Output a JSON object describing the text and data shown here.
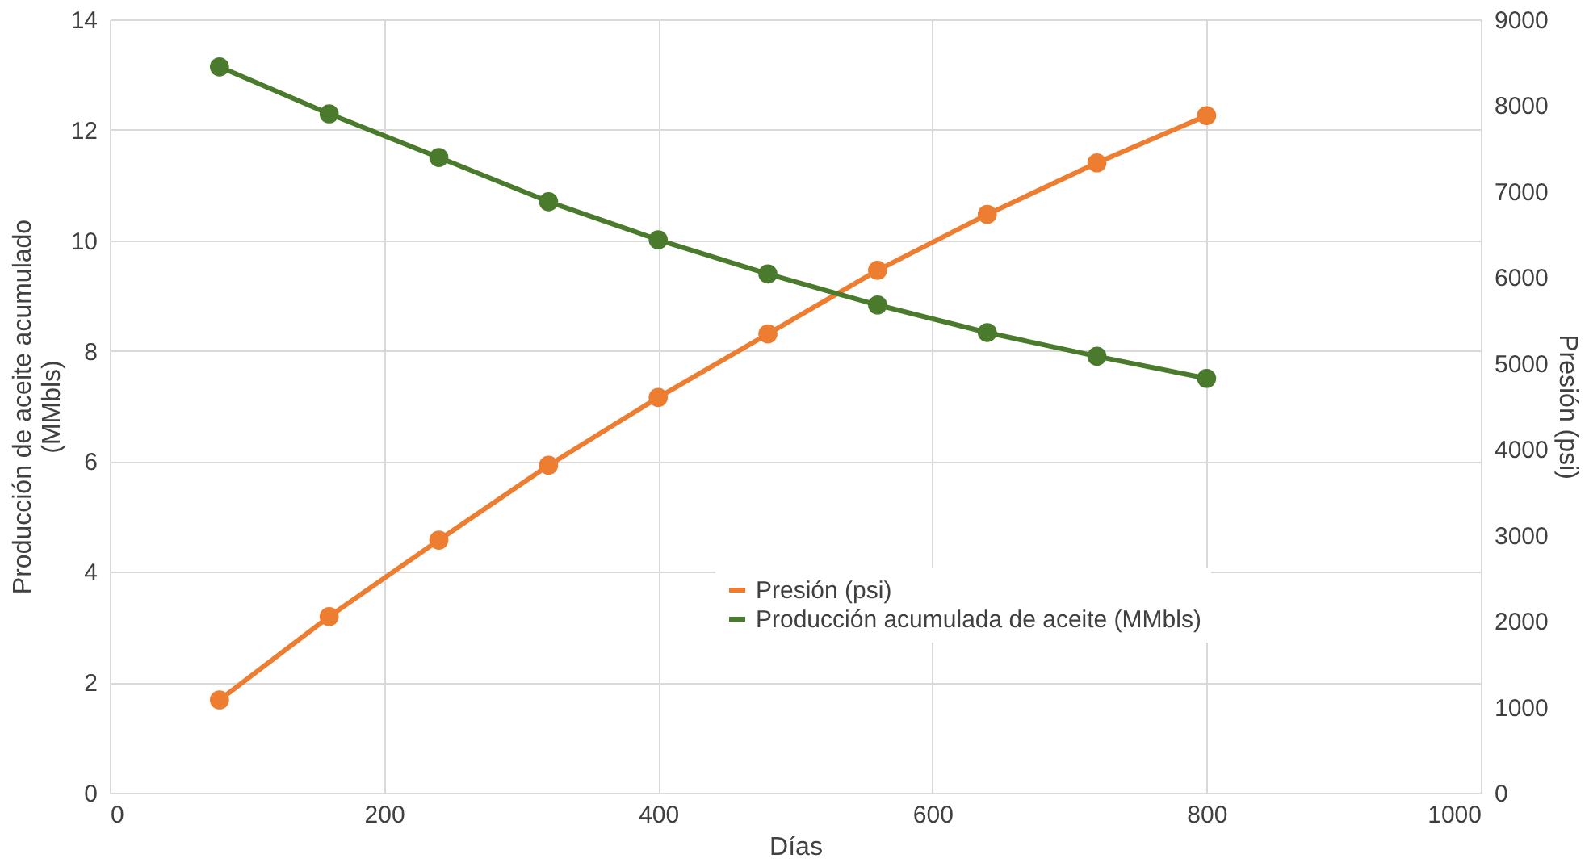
{
  "chart_data": {
    "type": "line",
    "xlabel": "Días",
    "ylabel": "Producción de aceite acumulado (MMbls)",
    "y2label": "Presión (psi)",
    "x": [
      80,
      160,
      240,
      320,
      400,
      480,
      560,
      640,
      720,
      800
    ],
    "series": [
      {
        "name": "Presión (psi)",
        "color": "#ed7d31",
        "axis": "y2",
        "values": [
          1080,
          2050,
          2940,
          3810,
          4600,
          5340,
          6080,
          6730,
          7330,
          7880
        ]
      },
      {
        "name": "Producción acumulada de aceite (MMbls)",
        "color": "#4a7a2c",
        "values": [
          13.14,
          12.29,
          11.5,
          10.7,
          10.01,
          9.39,
          8.83,
          8.33,
          7.9,
          7.5
        ]
      }
    ],
    "xlim": [
      0,
      1000
    ],
    "xticks": [
      0,
      200,
      400,
      600,
      800,
      1000
    ],
    "ylim": [
      0,
      14
    ],
    "yticks": [
      0,
      2,
      4,
      6,
      8,
      10,
      12,
      14
    ],
    "y2lim": [
      0,
      9000
    ],
    "y2ticks": [
      0,
      1000,
      2000,
      3000,
      4000,
      5000,
      6000,
      7000,
      8000,
      9000
    ],
    "grid": true,
    "legend": "bottom",
    "marker": "circle",
    "line_style": "solid"
  }
}
